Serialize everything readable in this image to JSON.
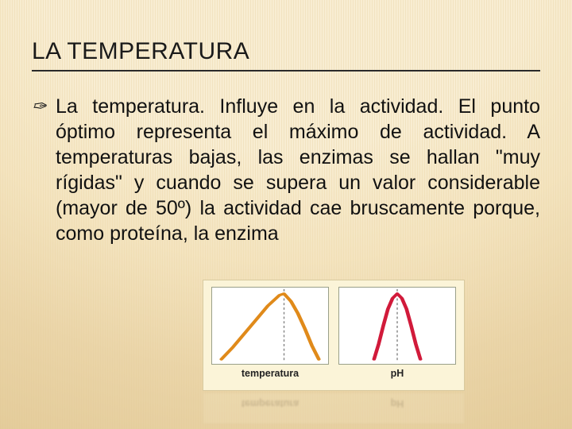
{
  "title": "LA TEMPERATURA",
  "bullet_glyph": "✑",
  "paragraph": "La temperatura. Influye en la actividad. El punto óptimo representa el máximo de actividad. A temperaturas bajas, las enzimas se hallan \"muy rígidas\" y cuando se supera un valor considerable (mayor de 50º) la actividad cae bruscamente porque, como proteína, la enzima",
  "chart1": {
    "label": "temperatura",
    "type": "line",
    "stroke": "#e08a1a",
    "stroke_width": 3.2,
    "xlim": [
      0,
      100
    ],
    "ylim": [
      0,
      100
    ],
    "dash_x": 62,
    "dash_color": "#888888",
    "background": "#ffffff",
    "border": "#9aa08a",
    "points": [
      [
        8,
        6
      ],
      [
        18,
        22
      ],
      [
        28,
        40
      ],
      [
        38,
        58
      ],
      [
        48,
        76
      ],
      [
        58,
        90
      ],
      [
        62,
        92
      ],
      [
        68,
        82
      ],
      [
        74,
        66
      ],
      [
        80,
        46
      ],
      [
        86,
        24
      ],
      [
        92,
        6
      ]
    ]
  },
  "chart2": {
    "label": "pH",
    "type": "line",
    "stroke": "#d11a3a",
    "stroke_width": 3.2,
    "xlim": [
      0,
      100
    ],
    "ylim": [
      0,
      100
    ],
    "dash_x": 50,
    "dash_color": "#888888",
    "background": "#ffffff",
    "border": "#9aa08a",
    "points": [
      [
        30,
        6
      ],
      [
        34,
        26
      ],
      [
        38,
        50
      ],
      [
        42,
        72
      ],
      [
        46,
        86
      ],
      [
        50,
        92
      ],
      [
        54,
        86
      ],
      [
        58,
        72
      ],
      [
        62,
        50
      ],
      [
        66,
        26
      ],
      [
        70,
        6
      ]
    ]
  },
  "panel_bg": "#fbf4d8",
  "panel_border": "#d8caa0"
}
